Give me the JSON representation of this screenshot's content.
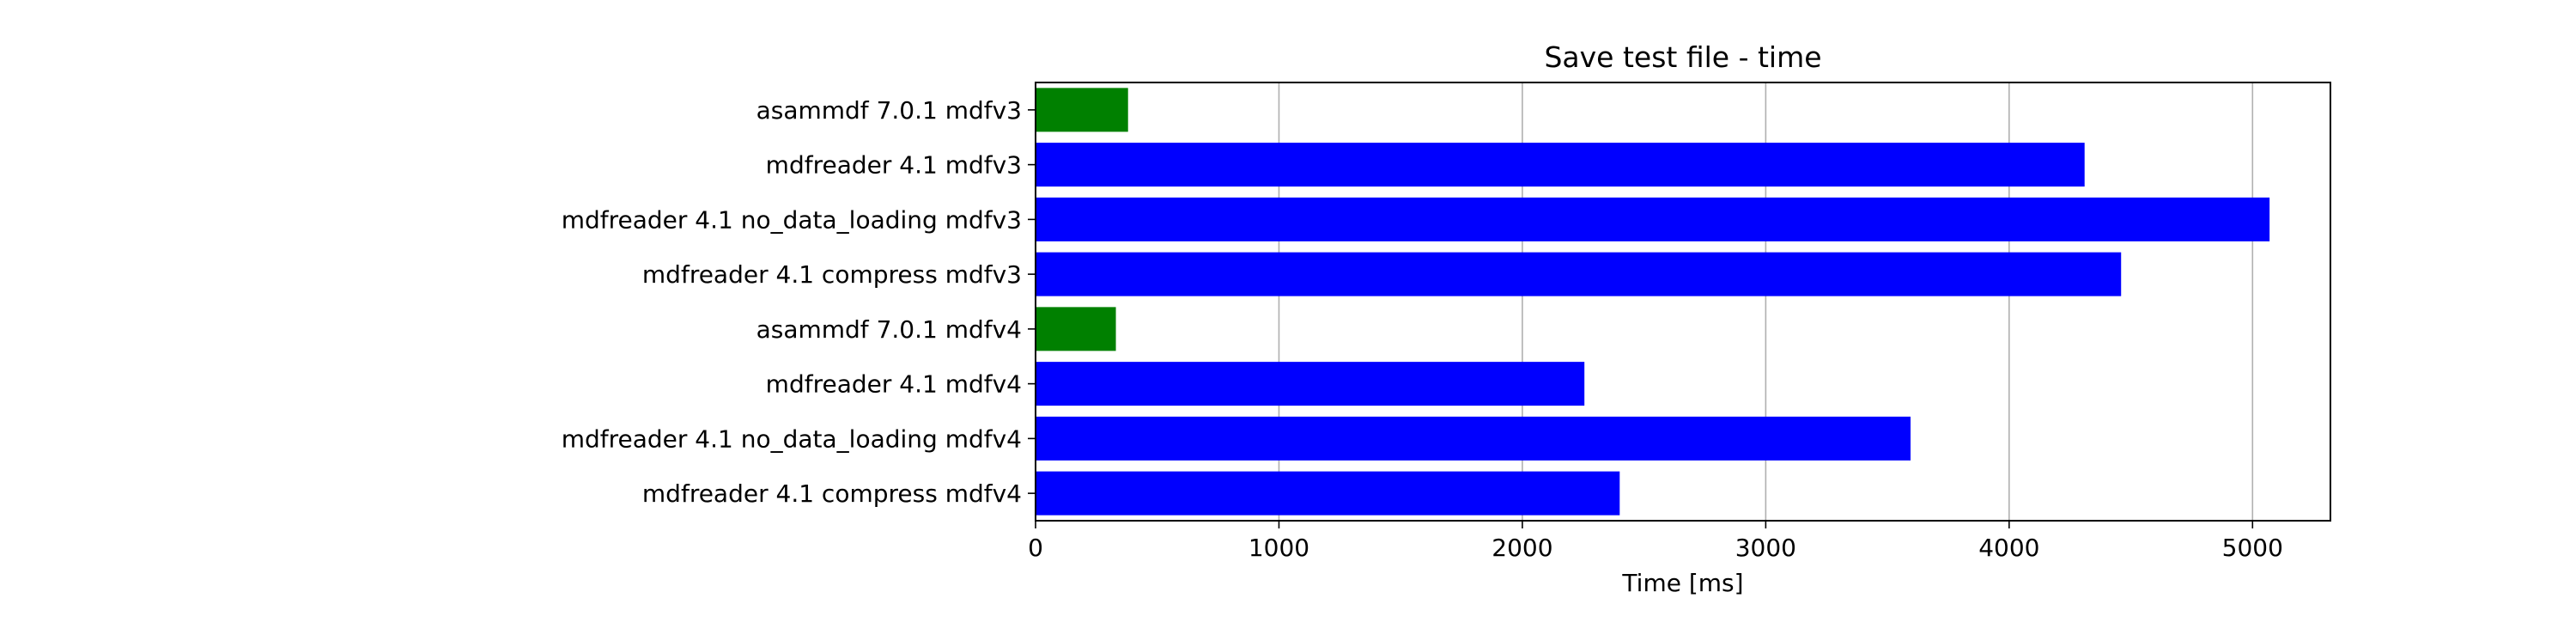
{
  "chart_data": {
    "type": "bar",
    "orientation": "horizontal",
    "title": "Save test file - time",
    "xlabel": "Time [ms]",
    "ylabel": "",
    "xlim": [
      0,
      5320
    ],
    "xticks": [
      0,
      1000,
      2000,
      3000,
      4000,
      5000
    ],
    "grid": "x",
    "legend": "none",
    "categories": [
      "asammdf 7.0.1 mdfv3",
      "mdfreader 4.1 mdfv3",
      "mdfreader 4.1 no_data_loading mdfv3",
      "mdfreader 4.1 compress mdfv3",
      "asammdf 7.0.1 mdfv4",
      "mdfreader 4.1 mdfv4",
      "mdfreader 4.1 no_data_loading mdfv4",
      "mdfreader 4.1 compress mdfv4"
    ],
    "values": [
      380,
      4310,
      5070,
      4460,
      330,
      2255,
      3595,
      2400
    ],
    "colors": [
      "#008000",
      "#0000ff",
      "#0000ff",
      "#0000ff",
      "#008000",
      "#0000ff",
      "#0000ff",
      "#0000ff"
    ]
  }
}
